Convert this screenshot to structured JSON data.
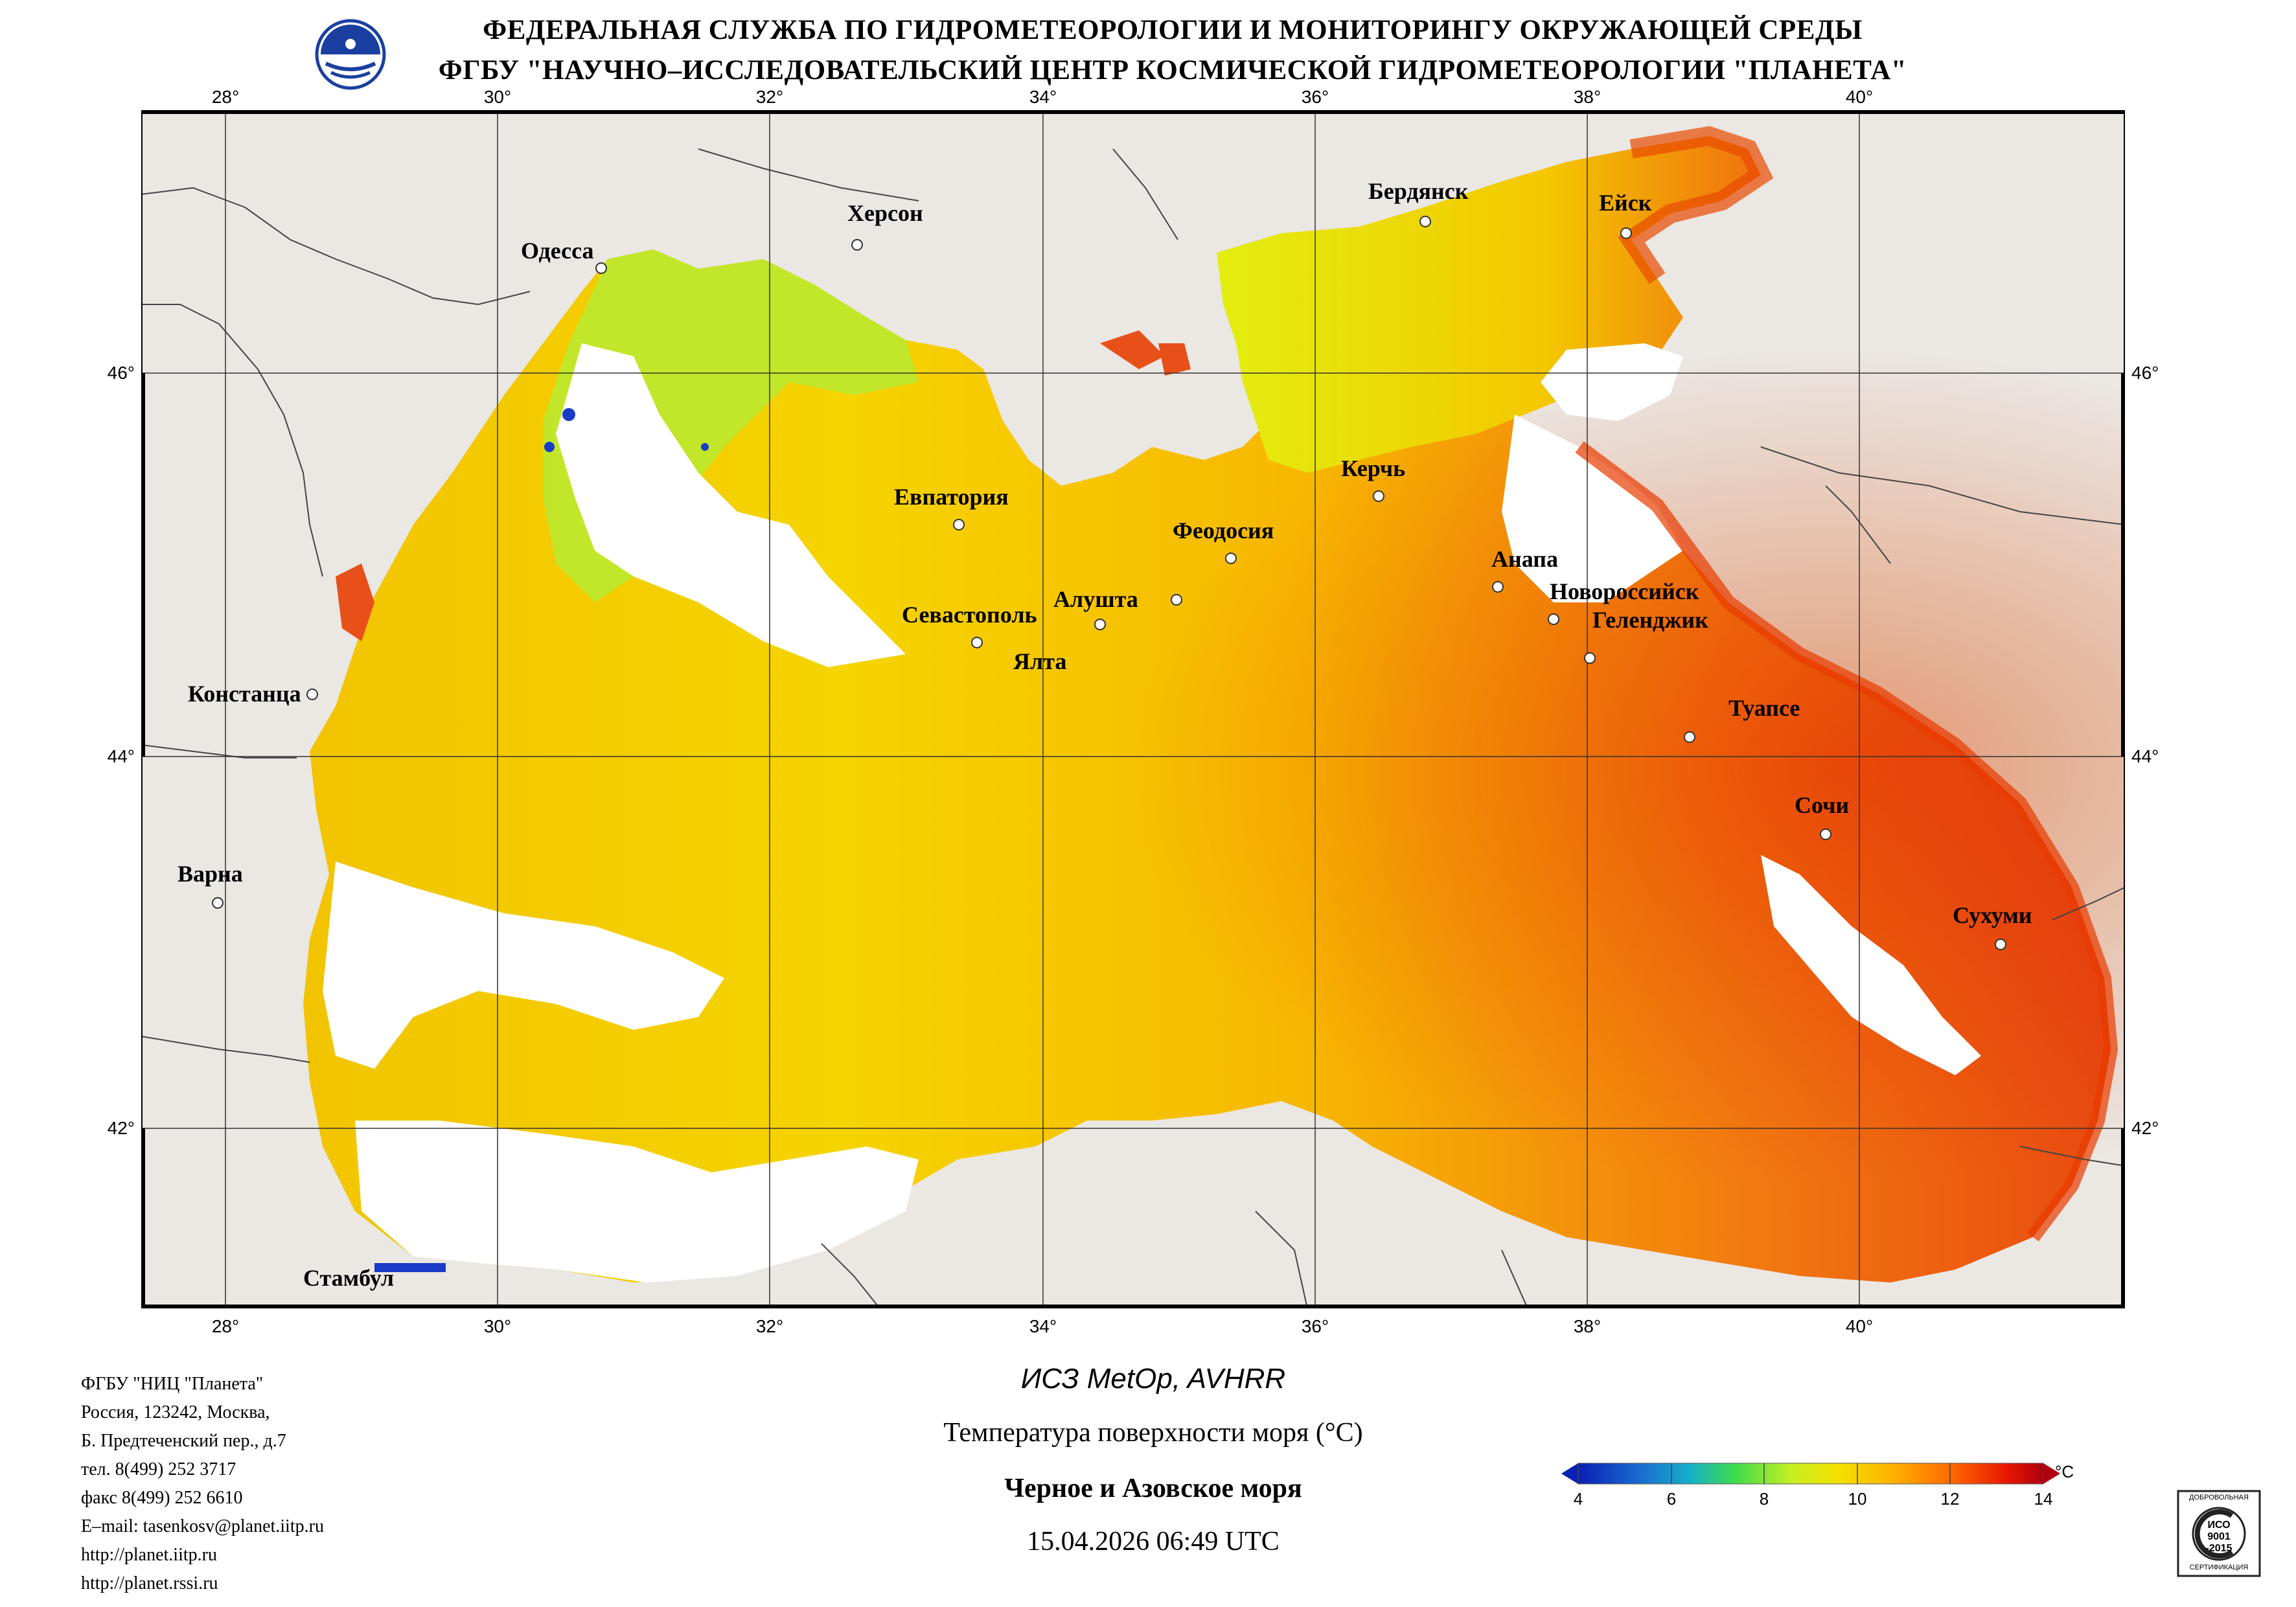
{
  "header": {
    "line1": "ФЕДЕРАЛЬНАЯ СЛУЖБА ПО ГИДРОМЕТЕОРОЛОГИИ И МОНИТОРИНГУ ОКРУЖАЮЩЕЙ СРЕДЫ",
    "line2": "ФГБУ \"НАУЧНО–ИССЛЕДОВАТЕЛЬСКИЙ ЦЕНТР КОСМИЧЕСКОЙ ГИДРОМЕТЕОРОЛОГИИ \"ПЛАНЕТА\""
  },
  "map": {
    "lon_ticks": [
      "28°",
      "30°",
      "32°",
      "34°",
      "36°",
      "38°",
      "40°"
    ],
    "lat_ticks": [
      "46°",
      "44°",
      "42°"
    ],
    "cities": [
      {
        "name": "Одесса"
      },
      {
        "name": "Херсон"
      },
      {
        "name": "Бердянск"
      },
      {
        "name": "Ейск"
      },
      {
        "name": "Евпатория"
      },
      {
        "name": "Керчь"
      },
      {
        "name": "Феодосия"
      },
      {
        "name": "Анапа"
      },
      {
        "name": "Новороссийск"
      },
      {
        "name": "Геленджик"
      },
      {
        "name": "Севастополь"
      },
      {
        "name": "Алушта"
      },
      {
        "name": "Ялта"
      },
      {
        "name": "Констанца"
      },
      {
        "name": "Туапсе"
      },
      {
        "name": "Сочи"
      },
      {
        "name": "Варна"
      },
      {
        "name": "Сухуми"
      },
      {
        "name": "Стамбул"
      }
    ],
    "colors": {
      "land": "#ebe7e3",
      "cloud": "#ffffff",
      "border": "#555555",
      "grid": "#333333"
    }
  },
  "contact": {
    "lines": [
      "ФГБУ \"НИЦ \"Планета\"",
      "Россия, 123242, Москва,",
      "Б. Предтеченский пер., д.7",
      "тел. 8(499) 252 3717",
      "факс 8(499) 252 6610",
      "E–mail: tasenkosv@planet.iitp.ru",
      "http://planet.iitp.ru",
      "http://planet.rssi.ru"
    ]
  },
  "caption": {
    "satellite": "ИСЗ MetOp, AVHRR",
    "product": "Температура поверхности моря (°C)",
    "region": "Черное и Азовское моря",
    "datetime": "15.04.2026 06:49 UTC"
  },
  "colorbar": {
    "unit": "°C",
    "ticks": [
      "4",
      "6",
      "8",
      "10",
      "12",
      "14"
    ],
    "min": 4,
    "max": 14,
    "colors": [
      "#0a1fb5",
      "#16b0c8",
      "#3fdc4a",
      "#c8f020",
      "#f5e000",
      "#ffb000",
      "#ff6a00",
      "#e81800",
      "#b00010"
    ]
  },
  "iso_badge": {
    "top": "ДОБРОВОЛЬНАЯ",
    "line1": "ИСО",
    "line2": "9001",
    "line3": "-2015",
    "bottom": "СЕРТИФИКАЦИЯ"
  }
}
